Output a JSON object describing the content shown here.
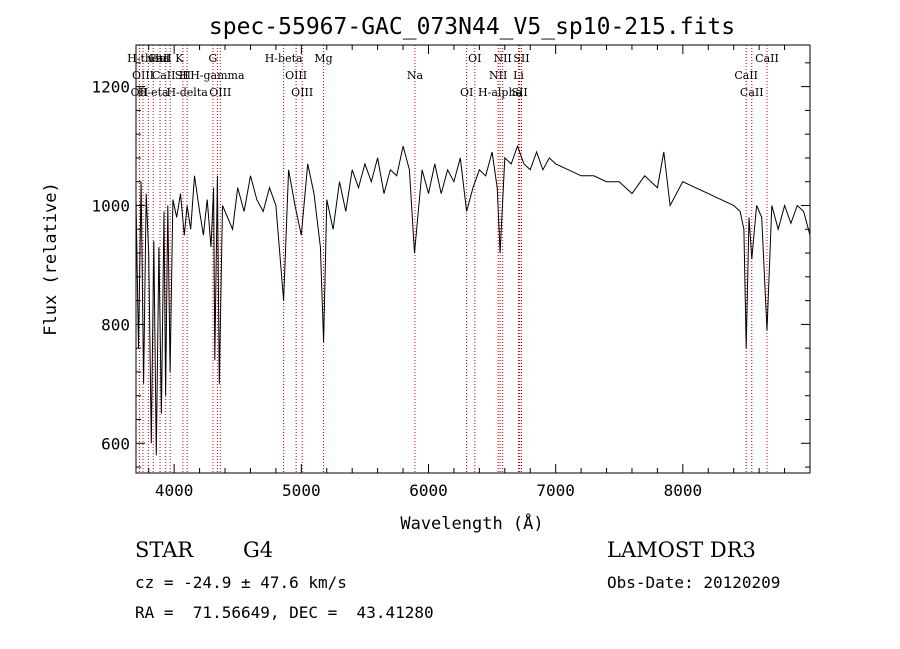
{
  "chart_data": {
    "type": "line",
    "title": "spec-55967-GAC_073N44_V5_sp10-215.fits",
    "xlabel": "Wavelength (Å)",
    "ylabel": "Flux (relative)",
    "xlim": [
      3700,
      9000
    ],
    "ylim": [
      550,
      1270
    ],
    "x_ticks": [
      4000,
      5000,
      6000,
      7000,
      8000
    ],
    "y_ticks": [
      600,
      800,
      1000,
      1200
    ],
    "series": [
      {
        "name": "flux",
        "x": [
          3700,
          3720,
          3740,
          3760,
          3780,
          3800,
          3820,
          3840,
          3860,
          3880,
          3900,
          3920,
          3933,
          3950,
          3968,
          3990,
          4020,
          4050,
          4080,
          4102,
          4130,
          4160,
          4200,
          4230,
          4260,
          4290,
          4310,
          4320,
          4340,
          4355,
          4380,
          4420,
          4460,
          4500,
          4550,
          4600,
          4650,
          4700,
          4750,
          4800,
          4861,
          4900,
          4950,
          5000,
          5050,
          5100,
          5150,
          5175,
          5200,
          5250,
          5300,
          5350,
          5400,
          5450,
          5500,
          5550,
          5600,
          5650,
          5700,
          5750,
          5800,
          5850,
          5890,
          5950,
          6000,
          6050,
          6100,
          6150,
          6200,
          6250,
          6300,
          6350,
          6400,
          6450,
          6500,
          6540,
          6563,
          6600,
          6650,
          6700,
          6750,
          6800,
          6850,
          6900,
          6950,
          7000,
          7100,
          7200,
          7300,
          7400,
          7500,
          7600,
          7700,
          7800,
          7850,
          7900,
          8000,
          8100,
          8200,
          8300,
          8400,
          8450,
          8480,
          8498,
          8520,
          8542,
          8580,
          8620,
          8662,
          8700,
          8750,
          8800,
          8850,
          8900,
          8950,
          9000
        ],
        "values": [
          1010,
          760,
          1040,
          700,
          1020,
          920,
          600,
          940,
          580,
          930,
          650,
          990,
          680,
          1000,
          720,
          1010,
          980,
          1020,
          950,
          1000,
          960,
          1050,
          990,
          950,
          1010,
          930,
          1030,
          740,
          1050,
          700,
          1000,
          980,
          960,
          1030,
          990,
          1050,
          1010,
          990,
          1030,
          1000,
          840,
          1060,
          1000,
          950,
          1070,
          1020,
          930,
          770,
          1010,
          960,
          1040,
          990,
          1060,
          1030,
          1070,
          1040,
          1080,
          1020,
          1060,
          1050,
          1100,
          1060,
          920,
          1060,
          1020,
          1070,
          1020,
          1060,
          1040,
          1080,
          990,
          1030,
          1060,
          1050,
          1090,
          1030,
          920,
          1080,
          1070,
          1100,
          1070,
          1060,
          1090,
          1060,
          1080,
          1070,
          1060,
          1050,
          1050,
          1040,
          1040,
          1020,
          1050,
          1030,
          1090,
          1000,
          1040,
          1030,
          1020,
          1010,
          1000,
          990,
          960,
          760,
          980,
          910,
          1000,
          980,
          790,
          1000,
          960,
          1000,
          970,
          1000,
          990,
          950
        ]
      }
    ],
    "lines": [
      {
        "name": "CaII K",
        "x": 3934
      },
      {
        "name": "CaII H",
        "x": 3969
      },
      {
        "name": "H-eta",
        "x": 3835
      },
      {
        "name": "H-theta",
        "x": 3797
      },
      {
        "name": "OIII",
        "x": 3755
      },
      {
        "name": "OII",
        "x": 3727
      },
      {
        "name": "HeI",
        "x": 3889
      },
      {
        "name": "SII",
        "x": 4069
      },
      {
        "name": "H-delta",
        "x": 4102
      },
      {
        "name": "G",
        "x": 4305
      },
      {
        "name": "H-gamma",
        "x": 4340
      },
      {
        "name": "OIII",
        "x": 4363
      },
      {
        "name": "H-beta",
        "x": 4861
      },
      {
        "name": "OIII",
        "x": 4959
      },
      {
        "name": "OIII",
        "x": 5007
      },
      {
        "name": "Mg",
        "x": 5175
      },
      {
        "name": "Na",
        "x": 5894
      },
      {
        "name": "OI",
        "x": 6300
      },
      {
        "name": "OI",
        "x": 6364
      },
      {
        "name": "NII",
        "x": 6548
      },
      {
        "name": "H-alpha",
        "x": 6563
      },
      {
        "name": "NII",
        "x": 6583
      },
      {
        "name": "Li",
        "x": 6708
      },
      {
        "name": "SII",
        "x": 6717
      },
      {
        "name": "SII",
        "x": 6731
      },
      {
        "name": "CaII",
        "x": 8498
      },
      {
        "name": "CaII",
        "x": 8542
      },
      {
        "name": "CaII",
        "x": 8662
      }
    ]
  },
  "info": {
    "object_class": "STAR",
    "subclass": "G4",
    "survey": "LAMOST DR3",
    "cz": "cz = -24.9 ± 47.6 km/s",
    "obs_date": "Obs-Date: 20120209",
    "coords": "RA =  71.56649, DEC =  43.41280"
  }
}
